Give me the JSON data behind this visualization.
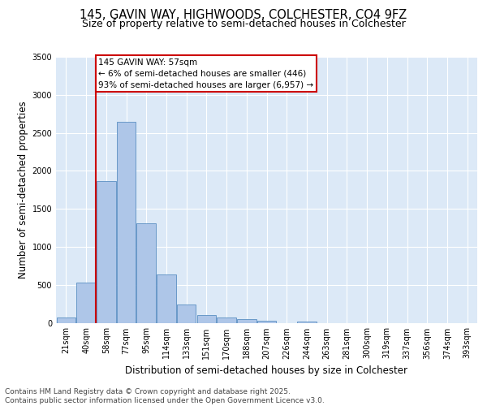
{
  "title1": "145, GAVIN WAY, HIGHWOODS, COLCHESTER, CO4 9FZ",
  "title2": "Size of property relative to semi-detached houses in Colchester",
  "xlabel": "Distribution of semi-detached houses by size in Colchester",
  "ylabel": "Number of semi-detached properties",
  "bin_labels": [
    "21sqm",
    "40sqm",
    "58sqm",
    "77sqm",
    "95sqm",
    "114sqm",
    "133sqm",
    "151sqm",
    "170sqm",
    "188sqm",
    "207sqm",
    "226sqm",
    "244sqm",
    "263sqm",
    "281sqm",
    "300sqm",
    "319sqm",
    "337sqm",
    "356sqm",
    "374sqm",
    "393sqm"
  ],
  "bar_heights": [
    70,
    530,
    1860,
    2650,
    1310,
    640,
    240,
    105,
    65,
    45,
    30,
    0,
    15,
    0,
    0,
    0,
    0,
    0,
    0,
    0,
    0
  ],
  "bar_color": "#aec6e8",
  "bar_edge_color": "#5a8fc2",
  "vline_color": "#cc0000",
  "annotation_title": "145 GAVIN WAY: 57sqm",
  "annotation_line1": "← 6% of semi-detached houses are smaller (446)",
  "annotation_line2": "93% of semi-detached houses are larger (6,957) →",
  "annotation_box_color": "#cc0000",
  "ylim": [
    0,
    3500
  ],
  "yticks": [
    0,
    500,
    1000,
    1500,
    2000,
    2500,
    3000,
    3500
  ],
  "bg_color": "#dce9f7",
  "footer1": "Contains HM Land Registry data © Crown copyright and database right 2025.",
  "footer2": "Contains public sector information licensed under the Open Government Licence v3.0.",
  "title_fontsize": 10.5,
  "subtitle_fontsize": 9,
  "axis_label_fontsize": 8.5,
  "tick_fontsize": 7,
  "annot_fontsize": 7.5,
  "footer_fontsize": 6.5
}
